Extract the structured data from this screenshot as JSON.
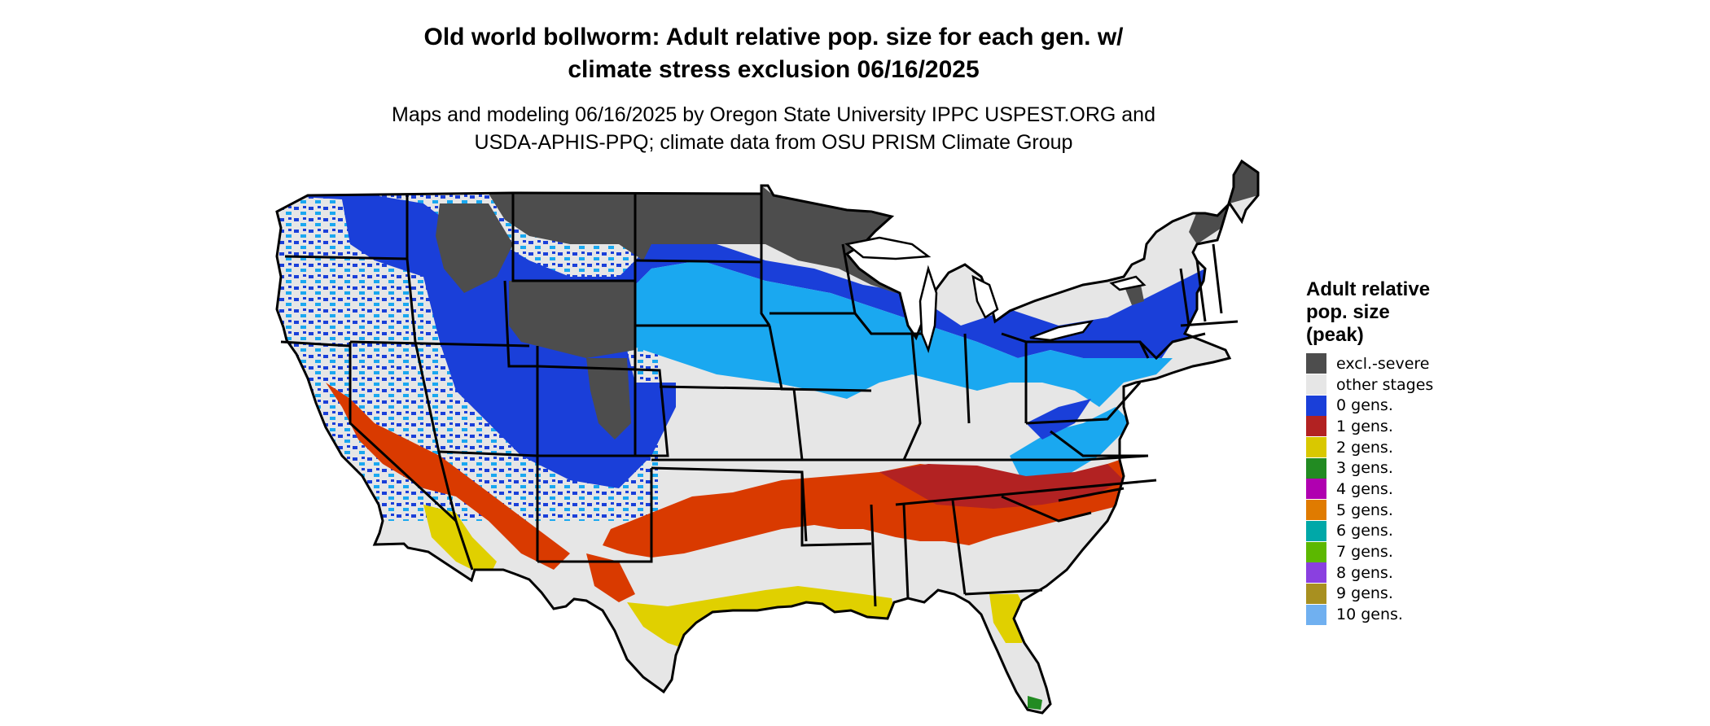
{
  "header": {
    "title_line1": "Old world bollworm: Adult relative pop. size for each gen. w/",
    "title_line2": "climate stress exclusion 06/16/2025",
    "subtitle_line1": "Maps and modeling 06/16/2025 by Oregon State University IPPC USPEST.ORG and",
    "subtitle_line2": "USDA-APHIS-PPQ; climate data from OSU PRISM Climate Group"
  },
  "legend": {
    "title_line1": "Adult relative",
    "title_line2": "pop. size",
    "title_line3": "(peak)",
    "items": [
      {
        "label": "excl.-severe",
        "color": "#4d4d4d"
      },
      {
        "label": "other stages",
        "color": "#e6e6e6"
      },
      {
        "label": "0 gens.",
        "color": "#1a3fd9"
      },
      {
        "label": "1 gens.",
        "color": "#b22222"
      },
      {
        "label": "2 gens.",
        "color": "#d9c800"
      },
      {
        "label": "3 gens.",
        "color": "#228b22"
      },
      {
        "label": "4 gens.",
        "color": "#b000b0"
      },
      {
        "label": "5 gens.",
        "color": "#e07b00"
      },
      {
        "label": "6 gens.",
        "color": "#00a8a8"
      },
      {
        "label": "7 gens.",
        "color": "#5cb800"
      },
      {
        "label": "8 gens.",
        "color": "#8a40e0"
      },
      {
        "label": "9 gens.",
        "color": "#a89020"
      },
      {
        "label": "10 gens.",
        "color": "#70b0f0"
      }
    ]
  },
  "map_colors": {
    "excluded": "#4d4d4d",
    "other_stages": "#e6e6e6",
    "zero_gens_dark": "#1a3fd9",
    "zero_gens_light": "#1aa8f0",
    "one_gens": "#d93a00",
    "one_gens_dark": "#b22222",
    "two_gens": "#e0d000",
    "three_gens": "#228b22",
    "border": "#000000"
  }
}
